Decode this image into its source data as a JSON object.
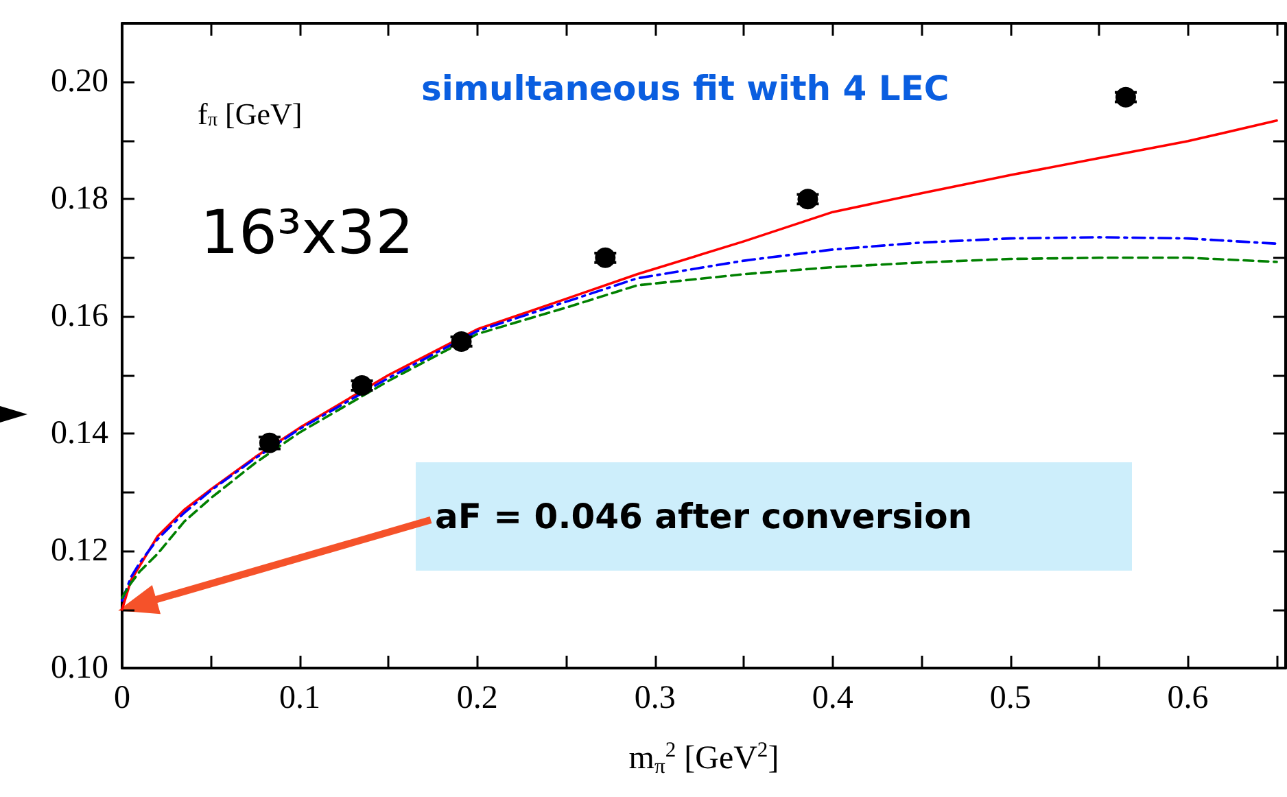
{
  "chart_data": {
    "type": "line",
    "xlabel": "m$_{π}$$^{2}$ [GeV$^{2}$]",
    "ylabel": "f$_{π}$ [GeV]",
    "xlim": [
      0,
      0.655
    ],
    "xticks": [
      0,
      {
        "value": 0.05,
        "label": null
      },
      0.1,
      {
        "value": 0.15,
        "label": null
      },
      0.2,
      {
        "value": 0.25,
        "label": null
      },
      0.3,
      {
        "value": 0.35,
        "label": null
      },
      0.4,
      {
        "value": 0.45,
        "label": null
      },
      0.5,
      {
        "value": 0.55,
        "label": null
      },
      0.6,
      {
        "value": 0.65,
        "label": null
      }
    ],
    "ylim": [
      0.1,
      0.21
    ],
    "yticks": [
      {
        "value": 0.1,
        "label": "0.10"
      },
      {
        "value": 0.11,
        "label": null
      },
      {
        "value": 0.12,
        "label": "0.12"
      },
      {
        "value": 0.13,
        "label": null
      },
      {
        "value": 0.14,
        "label": "0.14"
      },
      {
        "value": 0.15,
        "label": null
      },
      {
        "value": 0.16,
        "label": "0.16"
      },
      {
        "value": 0.17,
        "label": null
      },
      {
        "value": 0.18,
        "label": "0.18"
      },
      {
        "value": 0.19,
        "label": null
      },
      {
        "value": 0.2,
        "label": "0.20"
      }
    ],
    "grid": false,
    "marker": "none",
    "series": [
      {
        "type": "scatter",
        "color": "#000000",
        "marker": "circle",
        "x": [
          0.083,
          0.135,
          0.191,
          0.272,
          0.386,
          0.565
        ],
        "values": [
          0.1384,
          0.1482,
          0.1557,
          0.17,
          0.18,
          0.1974
        ],
        "errors": [
          0.001,
          0.0008,
          0.0008,
          0.0008,
          0.0008,
          0.0008
        ]
      },
      {
        "color": "#ff0000",
        "line_style": "solid",
        "x": [
          0,
          0.005,
          0.01,
          0.02,
          0.035,
          0.05,
          0.075,
          0.1,
          0.15,
          0.2,
          0.25,
          0.29,
          0.35,
          0.4,
          0.45,
          0.5,
          0.55,
          0.6,
          0.65
        ],
        "values": [
          0.11,
          0.115,
          0.1175,
          0.1225,
          0.127,
          0.1305,
          0.136,
          0.141,
          0.15,
          0.1578,
          0.163,
          0.1672,
          0.1728,
          0.1778,
          0.181,
          0.1841,
          0.187,
          0.1899,
          0.1934
        ]
      },
      {
        "color": "#0000ff",
        "line_style": "dashdot",
        "x": [
          0,
          0.005,
          0.01,
          0.02,
          0.035,
          0.05,
          0.075,
          0.1,
          0.15,
          0.2,
          0.25,
          0.29,
          0.35,
          0.4,
          0.45,
          0.5,
          0.55,
          0.6,
          0.65
        ],
        "values": [
          0.1115,
          0.1155,
          0.118,
          0.122,
          0.1265,
          0.1303,
          0.1358,
          0.1408,
          0.1495,
          0.1575,
          0.1625,
          0.1665,
          0.1695,
          0.1714,
          0.1726,
          0.1733,
          0.1735,
          0.1733,
          0.1724
        ]
      },
      {
        "color": "#008000",
        "line_style": "dashed",
        "x": [
          0,
          0.005,
          0.01,
          0.02,
          0.035,
          0.05,
          0.075,
          0.1,
          0.15,
          0.2,
          0.25,
          0.29,
          0.35,
          0.4,
          0.45,
          0.5,
          0.55,
          0.6,
          0.65
        ],
        "values": [
          0.112,
          0.1145,
          0.1165,
          0.1195,
          0.125,
          0.129,
          0.135,
          0.1402,
          0.149,
          0.157,
          0.1615,
          0.1653,
          0.1672,
          0.1684,
          0.1692,
          0.1698,
          0.17,
          0.17,
          0.1693
        ]
      }
    ],
    "annotations": [
      "simultaneous fit with 4 LEC",
      "16³x32",
      "aF = 0.046 after conversion"
    ]
  }
}
